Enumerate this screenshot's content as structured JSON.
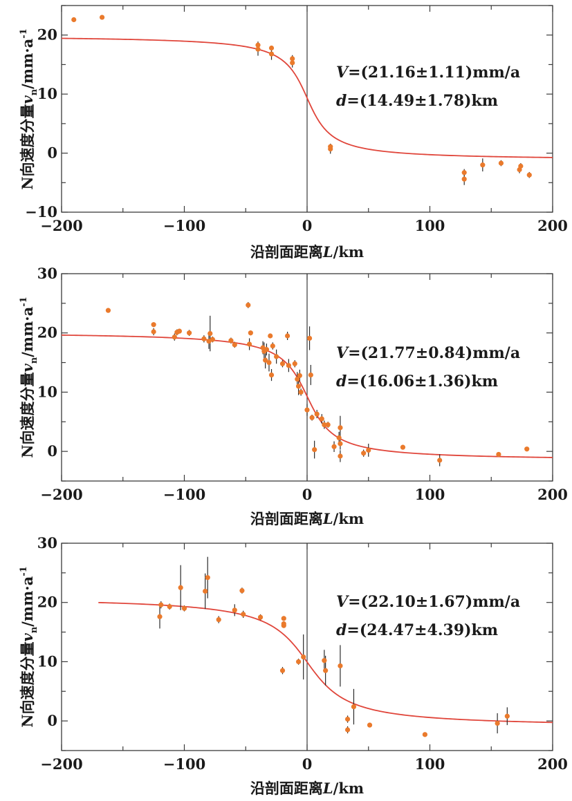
{
  "colors": {
    "points": "#ea7a2c",
    "curve": "#e0453a",
    "axis": "#3a3a3a"
  },
  "chart_data": [
    {
      "type": "scatter",
      "xlabel": "沿剖面距离L/km",
      "ylabel": "N向速度分量v_n/mm·a^-1",
      "xlim": [
        -200,
        200
      ],
      "ylim": [
        -10,
        25
      ],
      "xticks": [
        -200,
        -100,
        0,
        100,
        200
      ],
      "yticks": [
        -10,
        0,
        10,
        20
      ],
      "annotation": {
        "line1": "V=(21.16±1.11)mm/a",
        "line2": "d=(14.49±1.78)km"
      },
      "fit": {
        "V": 21.16,
        "d": 14.49,
        "offset": 9.35,
        "x0": 0,
        "xrange": [
          -200,
          200
        ]
      },
      "points": [
        {
          "x": -190,
          "y": 22.6,
          "e": 0.3
        },
        {
          "x": -167,
          "y": 23.0,
          "e": 0.3
        },
        {
          "x": -40,
          "y": 18.3,
          "e": 0.6
        },
        {
          "x": -40,
          "y": 17.6,
          "e": 1.1
        },
        {
          "x": -29,
          "y": 17.8,
          "e": 0.4
        },
        {
          "x": -29,
          "y": 16.8,
          "e": 1.0
        },
        {
          "x": -12,
          "y": 16.0,
          "e": 0.6
        },
        {
          "x": -12,
          "y": 15.3,
          "e": 0.8
        },
        {
          "x": 19,
          "y": 1.1,
          "e": 0.5
        },
        {
          "x": 19,
          "y": 0.7,
          "e": 0.8
        },
        {
          "x": 128,
          "y": -3.3,
          "e": 0.6
        },
        {
          "x": 128,
          "y": -4.4,
          "e": 1.0
        },
        {
          "x": 143,
          "y": -2.0,
          "e": 1.1
        },
        {
          "x": 158,
          "y": -1.7,
          "e": 0.5
        },
        {
          "x": 173,
          "y": -2.8,
          "e": 0.6
        },
        {
          "x": 174,
          "y": -2.2,
          "e": 0.5
        },
        {
          "x": 181,
          "y": -3.7,
          "e": 0.5
        }
      ]
    },
    {
      "type": "scatter",
      "xlabel": "沿剖面距离L/km",
      "ylabel": "N向速度分量v_n/mm·a^-1",
      "xlim": [
        -200,
        200
      ],
      "ylim": [
        -5,
        30
      ],
      "xticks": [
        -200,
        -100,
        0,
        100,
        200
      ],
      "yticks": [
        0,
        10,
        20,
        30
      ],
      "annotation": {
        "line1": "V=(21.77±0.84)mm/a",
        "line2": "d=(16.06±1.36)km"
      },
      "fit": {
        "V": 21.77,
        "d": 16.06,
        "offset": 9.3,
        "x0": 0,
        "xrange": [
          -200,
          200
        ]
      },
      "points": [
        {
          "x": -162,
          "y": 23.8,
          "e": 0.3
        },
        {
          "x": -125,
          "y": 21.4,
          "e": 0.4
        },
        {
          "x": -125,
          "y": 20.2,
          "e": 0.6
        },
        {
          "x": -108,
          "y": 19.3,
          "e": 0.6
        },
        {
          "x": -106,
          "y": 20.1,
          "e": 0.5
        },
        {
          "x": -104,
          "y": 20.3,
          "e": 0.4
        },
        {
          "x": -96,
          "y": 20.0,
          "e": 0.5
        },
        {
          "x": -84,
          "y": 19.0,
          "e": 0.6
        },
        {
          "x": -80,
          "y": 18.6,
          "e": 1.3
        },
        {
          "x": -79,
          "y": 19.9,
          "e": 3.0
        },
        {
          "x": -77,
          "y": 18.9,
          "e": 0.5
        },
        {
          "x": -62,
          "y": 18.7,
          "e": 0.5
        },
        {
          "x": -59,
          "y": 18.0,
          "e": 0.5
        },
        {
          "x": -48,
          "y": 24.7,
          "e": 0.5
        },
        {
          "x": -47,
          "y": 18.1,
          "e": 1.0
        },
        {
          "x": -46,
          "y": 20.0,
          "e": 0.4
        },
        {
          "x": -36,
          "y": 17.5,
          "e": 1.1
        },
        {
          "x": -35,
          "y": 16.9,
          "e": 1.5
        },
        {
          "x": -34,
          "y": 15.4,
          "e": 1.4
        },
        {
          "x": -33,
          "y": 17.2,
          "e": 1.0
        },
        {
          "x": -31,
          "y": 15.0,
          "e": 1.5
        },
        {
          "x": -30,
          "y": 19.5,
          "e": 0.4
        },
        {
          "x": -29,
          "y": 12.9,
          "e": 1.0
        },
        {
          "x": -28,
          "y": 17.8,
          "e": 0.6
        },
        {
          "x": -25,
          "y": 16.0,
          "e": 1.2
        },
        {
          "x": -20,
          "y": 14.8,
          "e": 0.6
        },
        {
          "x": -16,
          "y": 19.5,
          "e": 0.7
        },
        {
          "x": -15,
          "y": 14.5,
          "e": 1.1
        },
        {
          "x": -10,
          "y": 14.8,
          "e": 0.6
        },
        {
          "x": -8,
          "y": 12.2,
          "e": 1.2
        },
        {
          "x": -7,
          "y": 11.0,
          "e": 1.5
        },
        {
          "x": -6,
          "y": 12.8,
          "e": 1.0
        },
        {
          "x": -5,
          "y": 10.0,
          "e": 0.6
        },
        {
          "x": 0,
          "y": 7.0,
          "e": 1.0
        },
        {
          "x": 2,
          "y": 19.1,
          "e": 2.0
        },
        {
          "x": 3,
          "y": 12.9,
          "e": 1.7
        },
        {
          "x": 4,
          "y": 5.7,
          "e": 0.5
        },
        {
          "x": 6,
          "y": 0.3,
          "e": 1.5
        },
        {
          "x": 8,
          "y": 6.3,
          "e": 0.7
        },
        {
          "x": 12,
          "y": 5.5,
          "e": 0.8
        },
        {
          "x": 14,
          "y": 4.5,
          "e": 0.7
        },
        {
          "x": 17,
          "y": 4.5,
          "e": 0.5
        },
        {
          "x": 22,
          "y": 0.8,
          "e": 0.9
        },
        {
          "x": 26,
          "y": 2.3,
          "e": 1.0
        },
        {
          "x": 27,
          "y": 4.0,
          "e": 2.0
        },
        {
          "x": 27,
          "y": 1.3,
          "e": 1.0
        },
        {
          "x": 27,
          "y": -0.8,
          "e": 1.0
        },
        {
          "x": 46,
          "y": -0.3,
          "e": 0.6
        },
        {
          "x": 50,
          "y": 0.2,
          "e": 1.1
        },
        {
          "x": 78,
          "y": 0.7,
          "e": 0.3
        },
        {
          "x": 108,
          "y": -1.5,
          "e": 1.0
        },
        {
          "x": 156,
          "y": -0.5,
          "e": 0.3
        },
        {
          "x": 179,
          "y": 0.4,
          "e": 0.3
        }
      ]
    },
    {
      "type": "scatter",
      "xlabel": "沿剖面距离L/km",
      "ylabel": "N向速度分量v_n/mm·a^-1",
      "xlim": [
        -200,
        200
      ],
      "ylim": [
        -5,
        30
      ],
      "xticks": [
        -200,
        -100,
        0,
        100,
        200
      ],
      "yticks": [
        0,
        10,
        20,
        30
      ],
      "annotation": {
        "line1": "V=(22.10±1.67)mm/a",
        "line2": "d=(24.47±4.39)km"
      },
      "fit": {
        "V": 22.1,
        "d": 24.47,
        "offset": 9.94,
        "x0": 0,
        "xrange": [
          -170,
          200
        ]
      },
      "points": [
        {
          "x": -120,
          "y": 17.6,
          "e": 2.0
        },
        {
          "x": -119,
          "y": 19.6,
          "e": 0.6
        },
        {
          "x": -112,
          "y": 19.3,
          "e": 0.5
        },
        {
          "x": -103,
          "y": 22.5,
          "e": 3.8
        },
        {
          "x": -100,
          "y": 19.0,
          "e": 0.5
        },
        {
          "x": -83,
          "y": 21.9,
          "e": 3.0
        },
        {
          "x": -81,
          "y": 24.2,
          "e": 3.5
        },
        {
          "x": -72,
          "y": 17.1,
          "e": 0.6
        },
        {
          "x": -59,
          "y": 18.7,
          "e": 1.0
        },
        {
          "x": -53,
          "y": 22.0,
          "e": 0.5
        },
        {
          "x": -52,
          "y": 18.0,
          "e": 0.6
        },
        {
          "x": -38,
          "y": 17.5,
          "e": 0.5
        },
        {
          "x": -20,
          "y": 8.5,
          "e": 0.6
        },
        {
          "x": -19,
          "y": 17.3,
          "e": 0.4
        },
        {
          "x": -19,
          "y": 16.4,
          "e": 0.4
        },
        {
          "x": -19,
          "y": 16.1,
          "e": 0.4
        },
        {
          "x": -7,
          "y": 10.0,
          "e": 0.5
        },
        {
          "x": -3,
          "y": 10.8,
          "e": 3.8
        },
        {
          "x": 14,
          "y": 10.2,
          "e": 1.8
        },
        {
          "x": 15,
          "y": 8.5,
          "e": 2.5
        },
        {
          "x": 27,
          "y": 9.3,
          "e": 3.5
        },
        {
          "x": 33,
          "y": 0.3,
          "e": 0.6
        },
        {
          "x": 33,
          "y": -1.5,
          "e": 0.6
        },
        {
          "x": 38,
          "y": 2.4,
          "e": 3.0
        },
        {
          "x": 51,
          "y": -0.7,
          "e": 0.3
        },
        {
          "x": 96,
          "y": -2.3,
          "e": 0.3
        },
        {
          "x": 155,
          "y": -0.4,
          "e": 1.7
        },
        {
          "x": 163,
          "y": 0.8,
          "e": 1.5
        }
      ]
    }
  ]
}
